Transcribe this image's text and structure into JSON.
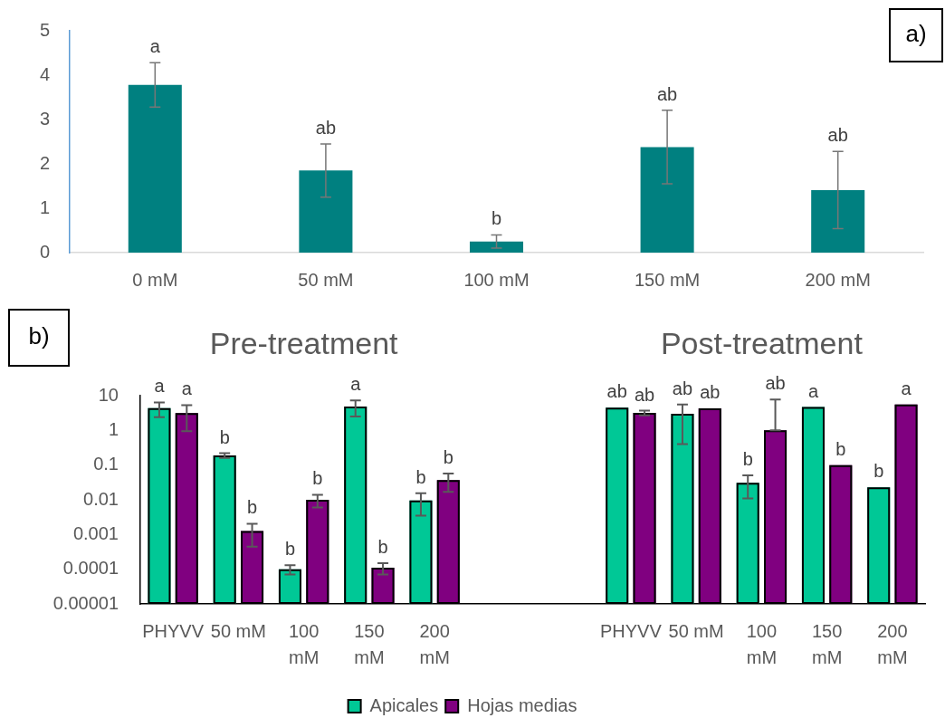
{
  "chart_data": [
    {
      "type": "bar",
      "categories": [
        "0 mM",
        "50 mM",
        "100 mM",
        "150 mM",
        "200 mM"
      ],
      "values": [
        3.78,
        1.85,
        0.25,
        2.38,
        1.41
      ],
      "errors": [
        0.5,
        0.6,
        0.15,
        0.83,
        0.87
      ],
      "color": "#008080",
      "value_labels": [
        "a",
        "ab",
        "b",
        "ab",
        "ab"
      ],
      "ylim": [
        0,
        5
      ],
      "yticks": [
        0,
        1,
        2,
        3,
        4,
        5
      ],
      "annotations": [
        "a)"
      ]
    },
    {
      "type": "bar",
      "categories": [
        "PHYVV",
        "50 mM",
        "100 mM",
        "150 mM",
        "200 mM",
        null,
        null,
        "PHYVV",
        "50 mM",
        "100 mM",
        "150 mM",
        "200 mM"
      ],
      "series": [
        {
          "name": "Apicales",
          "color": "#00c896",
          "values": [
            4.4,
            0.19,
            0.0001,
            4.9,
            0.0095,
            null,
            null,
            4.5,
            3.0,
            0.031,
            4.7,
            0.023
          ],
          "errors": [
            2,
            0.03,
            3e-05,
            2.4,
            0.006,
            null,
            null,
            null,
            2.6,
            0.02,
            null,
            null
          ],
          "value_labels": [
            "a",
            "b",
            "b",
            "a",
            "b",
            null,
            null,
            "ab",
            "ab",
            "b",
            "a",
            "b"
          ]
        },
        {
          "name": "Hojas medias",
          "color": "#800080",
          "values": [
            3.15,
            0.00125,
            0.01,
            0.00011,
            0.037,
            null,
            null,
            3.2,
            4.3,
            1,
            0.1,
            5.6
          ],
          "errors": [
            2.2,
            0.0008,
            0.004,
            4e-05,
            0.02,
            null,
            null,
            0.5,
            null,
            [
              1,
              7.8
            ],
            null,
            null
          ],
          "value_labels": [
            "a",
            "b",
            "b",
            "b",
            "b",
            null,
            null,
            "ab",
            "ab",
            "ab",
            "b",
            "a"
          ]
        }
      ],
      "log": true,
      "ylim": [
        1e-05,
        10
      ],
      "yticks": [
        {
          "value": 1e-05,
          "label": "0.00001"
        },
        0.0001,
        0.001,
        0.01,
        0.1,
        1,
        10
      ],
      "legend": "bottom",
      "annotations": [
        "b)",
        "Pre-treatment",
        "Post-treatment"
      ]
    }
  ]
}
